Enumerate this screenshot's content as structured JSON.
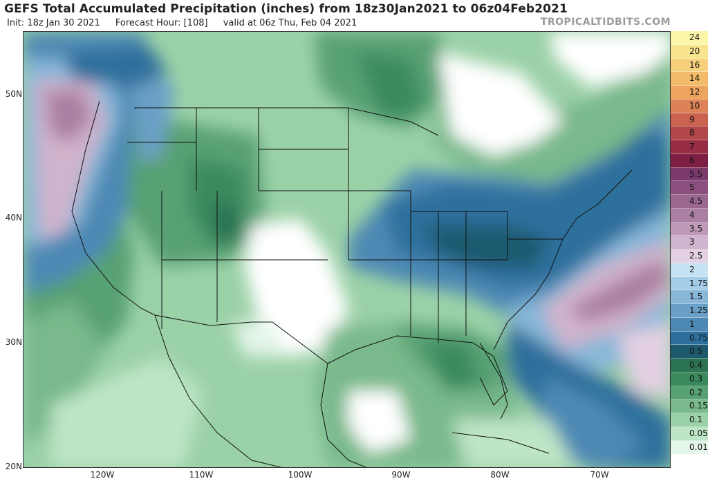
{
  "header": {
    "title": "GEFS Total Accumulated Precipitation (inches) from 18z30Jan2021 to 06z04Feb2021",
    "init": "Init: 18z Jan 30 2021",
    "forecast_hour": "Forecast Hour: [108]",
    "valid": "valid at 06z Thu, Feb 04 2021",
    "brand": "TROPICALTIDBITS.COM"
  },
  "axes": {
    "lat_labels": [
      "50N",
      "40N",
      "30N",
      "20N"
    ],
    "lon_labels": [
      "120W",
      "110W",
      "100W",
      "90W",
      "80W",
      "70W"
    ]
  },
  "legend": [
    {
      "label": "24",
      "color": "#fbf5a8"
    },
    {
      "label": "20",
      "color": "#f9e48e"
    },
    {
      "label": "16",
      "color": "#f6d07a"
    },
    {
      "label": "14",
      "color": "#f2bb69"
    },
    {
      "label": "12",
      "color": "#eda45e"
    },
    {
      "label": "10",
      "color": "#dd8156"
    },
    {
      "label": "9",
      "color": "#c96350"
    },
    {
      "label": "8",
      "color": "#b2474b"
    },
    {
      "label": "7",
      "color": "#972d45"
    },
    {
      "label": "6",
      "color": "#7d1f45"
    },
    {
      "label": "5.5",
      "color": "#7b3a6b"
    },
    {
      "label": "5",
      "color": "#8a4f7f"
    },
    {
      "label": "4.5",
      "color": "#9a6791"
    },
    {
      "label": "4",
      "color": "#ab7fa3"
    },
    {
      "label": "3.5",
      "color": "#be99b8"
    },
    {
      "label": "3",
      "color": "#d0b3cc"
    },
    {
      "label": "2.5",
      "color": "#e3d0e2"
    },
    {
      "label": "2",
      "color": "#c6e2f3"
    },
    {
      "label": "1.75",
      "color": "#a6cde7"
    },
    {
      "label": "1.5",
      "color": "#88b7d8"
    },
    {
      "label": "1.25",
      "color": "#6aa0c7"
    },
    {
      "label": "1",
      "color": "#4d89b4"
    },
    {
      "label": "0.75",
      "color": "#2d6f9c"
    },
    {
      "label": "0.5",
      "color": "#1d5a6e"
    },
    {
      "label": "0.4",
      "color": "#2b7252"
    },
    {
      "label": "0.3",
      "color": "#3b8a5e"
    },
    {
      "label": "0.2",
      "color": "#58a173"
    },
    {
      "label": "0.15",
      "color": "#79b98b"
    },
    {
      "label": "0.1",
      "color": "#9bd1a7"
    },
    {
      "label": "0.05",
      "color": "#bde5c6"
    },
    {
      "label": "0.01",
      "color": "#e4f5e9"
    },
    {
      "label": "",
      "color": "#ffffff"
    }
  ]
}
